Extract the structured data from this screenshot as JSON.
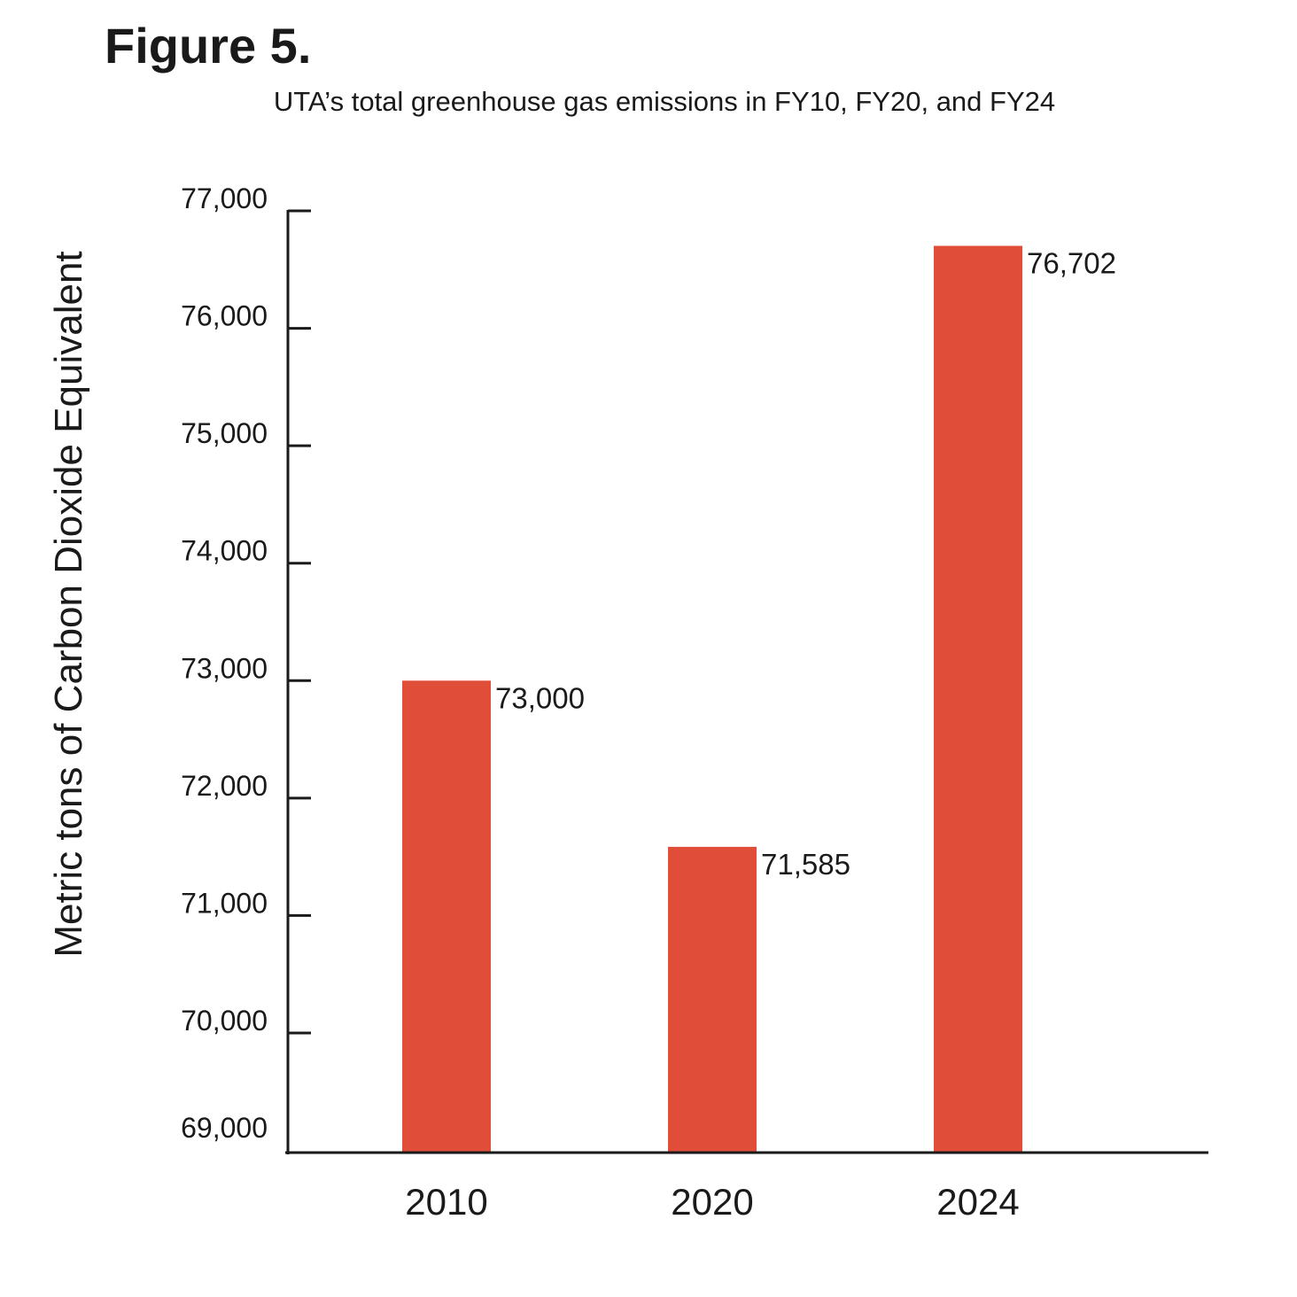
{
  "figure_label": "Figure 5.",
  "chart_data": {
    "type": "bar",
    "title": "UTA’s total greenhouse gas emissions in FY10, FY20, and FY24",
    "xlabel": "",
    "ylabel": "Metric tons of Carbon Dioxide Equivalent",
    "categories": [
      "2010",
      "2020",
      "2024"
    ],
    "values": [
      73000,
      71585,
      76702
    ],
    "value_labels": [
      "73,000",
      "71,585",
      "76,702"
    ],
    "ylim": [
      69000,
      77000
    ],
    "yticks": [
      69000,
      70000,
      71000,
      72000,
      73000,
      74000,
      75000,
      76000,
      77000
    ],
    "ytick_labels": [
      "69,000",
      "70,000",
      "71,000",
      "72,000",
      "73,000",
      "74,000",
      "75,000",
      "76,000",
      "77,000"
    ],
    "bar_color": "#e04e39",
    "axis_color": "#1a1a1a",
    "grid": false,
    "legend": "none"
  }
}
